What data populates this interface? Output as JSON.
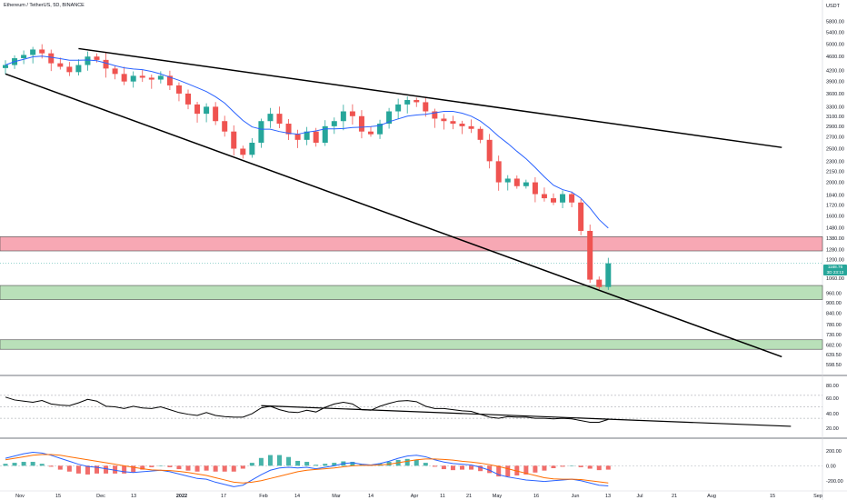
{
  "header": {
    "title": "Ethereum / TetherUS, 5D, BINANCE"
  },
  "colors": {
    "bull": "#26a69a",
    "bear": "#ef5350",
    "ma_line": "#2962ff",
    "resistance_zone": "#f7a8b4",
    "support_zone": "#b9e0b9",
    "macd_line": "#2962ff",
    "signal_line": "#ff6d00",
    "rsi_line": "#000000"
  },
  "price_axis": {
    "currency": "USDT",
    "ticks": [
      "5800.00",
      "5400.00",
      "5000.00",
      "4600.00",
      "4200.00",
      "3900.00",
      "3600.00",
      "3300.00",
      "3100.00",
      "2900.00",
      "2700.00",
      "2500.00",
      "2300.00",
      "2150.00",
      "2000.00",
      "1840.00",
      "1720.00",
      "1600.00",
      "1480.00",
      "1380.00",
      "1280.00",
      "1200.00",
      "1060.00",
      "960.00",
      "900.00",
      "840.00",
      "780.00",
      "730.00",
      "682.00",
      "639.50",
      "598.50"
    ]
  },
  "price_badge": {
    "price": "1168.76",
    "countdown": "3D 23:13"
  },
  "rsi_axis": {
    "ticks": [
      "80.00",
      "60.00",
      "40.00",
      "20.00"
    ]
  },
  "macd_axis": {
    "ticks": [
      "200.00",
      "0.00",
      "-200.00"
    ]
  },
  "time_axis": {
    "labels": [
      {
        "text": "Nov",
        "bold": false
      },
      {
        "text": "15",
        "bold": false
      },
      {
        "text": "Dec",
        "bold": false
      },
      {
        "text": "13",
        "bold": false
      },
      {
        "text": "2022",
        "bold": true
      },
      {
        "text": "17",
        "bold": false
      },
      {
        "text": "Feb",
        "bold": false
      },
      {
        "text": "14",
        "bold": false
      },
      {
        "text": "Mar",
        "bold": false
      },
      {
        "text": "14",
        "bold": false
      },
      {
        "text": "Apr",
        "bold": false
      },
      {
        "text": "11",
        "bold": false
      },
      {
        "text": "21",
        "bold": false
      },
      {
        "text": "May",
        "bold": false
      },
      {
        "text": "16",
        "bold": false
      },
      {
        "text": "Jun",
        "bold": false
      },
      {
        "text": "13",
        "bold": false
      },
      {
        "text": "Jul",
        "bold": false
      },
      {
        "text": "21",
        "bold": false
      },
      {
        "text": "Aug",
        "bold": false
      },
      {
        "text": "15",
        "bold": false
      },
      {
        "text": "Sep",
        "bold": false
      }
    ]
  },
  "chart_data": [
    {
      "type": "candlestick",
      "panel": "price",
      "y_scale": "log",
      "ylim": [
        560,
        6300
      ],
      "close_series": [
        4350,
        4550,
        4650,
        4820,
        4700,
        4400,
        4300,
        4150,
        4350,
        4600,
        4500,
        4250,
        4100,
        3900,
        4050,
        4000,
        3950,
        4050,
        3800,
        3600,
        3350,
        3150,
        3300,
        3000,
        2800,
        2500,
        2400,
        2600,
        3000,
        3150,
        2950,
        2750,
        2650,
        2800,
        2600,
        2900,
        3000,
        3200,
        3100,
        2800,
        2750,
        2950,
        3200,
        3350,
        3450,
        3400,
        3200,
        3050,
        3000,
        2950,
        2900,
        2850,
        2650,
        2300,
        2000,
        2050,
        1950,
        2000,
        1850,
        1800,
        1750,
        1850,
        1750,
        1450,
        1050,
        1000,
        1170
      ],
      "wedge_resistance": [
        {
          "t": 8,
          "price": 4850
        },
        {
          "t": 85,
          "price": 2520
        }
      ],
      "wedge_support": [
        {
          "t": 0,
          "price": 4100
        },
        {
          "t": 85,
          "price": 630
        }
      ],
      "resistance_zone": [
        1270,
        1395
      ],
      "support_zones": [
        [
          920,
          1010
        ],
        [
          662,
          705
        ]
      ],
      "last_price": 1168.76
    },
    {
      "type": "line",
      "panel": "rsi",
      "ylim": [
        0,
        100
      ],
      "values": [
        67,
        62,
        60,
        58,
        61,
        55,
        53,
        52,
        57,
        63,
        60,
        51,
        50,
        47,
        51,
        48,
        47,
        50,
        45,
        40,
        37,
        35,
        40,
        35,
        33,
        32,
        32,
        38,
        48,
        51,
        45,
        41,
        40,
        44,
        41,
        49,
        55,
        58,
        55,
        45,
        44,
        51,
        56,
        60,
        61,
        59,
        51,
        47,
        47,
        45,
        43,
        42,
        37,
        32,
        30,
        33,
        32,
        32,
        30,
        30,
        29,
        30,
        29,
        26,
        23,
        23,
        28
      ],
      "trendline": [
        {
          "t": 28,
          "value": 52
        },
        {
          "t": 86,
          "value": 16
        }
      ]
    },
    {
      "type": "line",
      "panel": "macd",
      "ylim": [
        -300,
        320
      ],
      "macd": [
        100,
        130,
        160,
        180,
        170,
        140,
        100,
        60,
        20,
        -10,
        -20,
        -40,
        -60,
        -80,
        -90,
        -80,
        -70,
        -60,
        -80,
        -110,
        -140,
        -170,
        -180,
        -220,
        -250,
        -280,
        -260,
        -190,
        -120,
        -60,
        -30,
        -20,
        -30,
        -20,
        -40,
        -20,
        0,
        30,
        40,
        20,
        10,
        30,
        60,
        100,
        130,
        140,
        120,
        80,
        50,
        30,
        20,
        10,
        -20,
        -60,
        -120,
        -150,
        -170,
        -190,
        -200,
        -210,
        -200,
        -190,
        -180,
        -200,
        -230,
        -260,
        -270
      ],
      "signal": [
        80,
        100,
        120,
        140,
        150,
        150,
        140,
        120,
        100,
        80,
        60,
        40,
        20,
        0,
        -20,
        -40,
        -55,
        -60,
        -65,
        -75,
        -90,
        -110,
        -130,
        -160,
        -190,
        -220,
        -230,
        -220,
        -200,
        -170,
        -140,
        -110,
        -80,
        -60,
        -50,
        -40,
        -30,
        -15,
        0,
        5,
        5,
        10,
        20,
        40,
        60,
        80,
        90,
        90,
        85,
        75,
        60,
        50,
        35,
        15,
        -10,
        -40,
        -70,
        -100,
        -130,
        -160,
        -175,
        -180,
        -180,
        -185,
        -200,
        -215,
        -230
      ]
    }
  ]
}
